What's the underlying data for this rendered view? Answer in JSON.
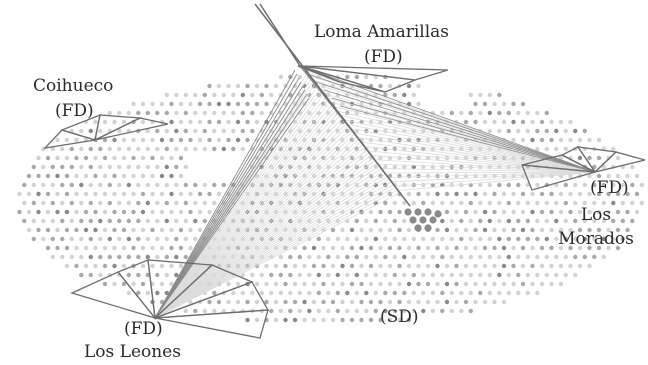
{
  "stations": {
    "loma_amarillas": {
      "name": "Loma Amarillas",
      "type": "(FD)"
    },
    "coihueco": {
      "name": "Coihueco",
      "type": "(FD)"
    },
    "los_morados": {
      "name": "Los Morados",
      "type": "(FD)"
    },
    "los_leones": {
      "name": "Los Leones",
      "type": "(FD)"
    }
  },
  "array_label": "(SD)",
  "colors": {
    "background": "#ffffff",
    "dots_light": "#d2d2d2",
    "dots_mid": "#a8a8a8",
    "dots_dark": "#888888",
    "fov_lines": "#6d6d6d",
    "rays_light": "#dcdcdc",
    "rays_dark": "#8a8a8a",
    "label_text": "#2a2a2a"
  }
}
